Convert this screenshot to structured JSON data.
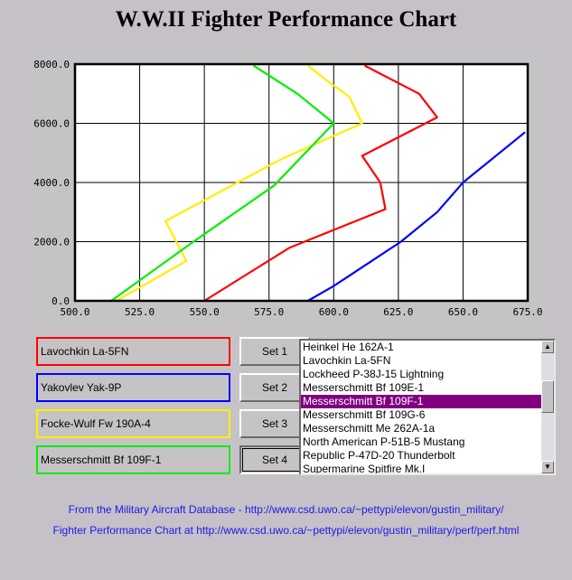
{
  "title": "W.W.II Fighter Performance Chart",
  "colors": {
    "set1": "#ff0000",
    "set2": "#0000ff",
    "set3": "#ffee00",
    "set4": "#00ee00",
    "selection": "#800080",
    "footer_link": "#1a1ae6"
  },
  "sets": [
    {
      "aircraft": "Lavochkin La-5FN",
      "button_label": "Set 1"
    },
    {
      "aircraft": "Yakovlev Yak-9P",
      "button_label": "Set 2"
    },
    {
      "aircraft": "Focke-Wulf Fw 190A-4",
      "button_label": "Set 3"
    },
    {
      "aircraft": "Messerschmitt Bf 109F-1",
      "button_label": "Set 4"
    }
  ],
  "aircraft_list": {
    "items": [
      "Heinkel He 162A-1",
      "Lavochkin La-5FN",
      "Lockheed P-38J-15 Lightning",
      "Messerschmitt Bf 109E-1",
      "Messerschmitt Bf 109F-1",
      "Messerschmitt Bf 109G-6",
      "Messerschmitt Me 262A-1a",
      "North American P-51B-5 Mustang",
      "Republic P-47D-20 Thunderbolt",
      "Supermarine Spitfire Mk.I"
    ],
    "selected": "Messerschmitt Bf 109F-1",
    "scroll_up_icon": "arrow-up-icon",
    "scroll_down_icon": "arrow-down-icon"
  },
  "footer": {
    "line1": "From the Military Aircraft Database - http://www.csd.uwo.ca/~pettypi/elevon/gustin_military/",
    "line2": "Fighter Performance Chart at http://www.csd.uwo.ca/~pettypi/elevon/gustin_military/perf/perf.html"
  },
  "chart_data": {
    "type": "line",
    "grid": true,
    "xlim": [
      500,
      675
    ],
    "ylim": [
      0,
      8000
    ],
    "x_ticks": [
      "500.0",
      "525.0",
      "550.0",
      "575.0",
      "600.0",
      "625.0",
      "650.0",
      "675.0"
    ],
    "y_ticks": [
      "0.0",
      "2000.0",
      "4000.0",
      "6000.0",
      "8000.0"
    ],
    "series": [
      {
        "set": 1,
        "color": "#ff0000",
        "points": [
          [
            550,
            0
          ],
          [
            583,
            1800
          ],
          [
            620,
            3100
          ],
          [
            618,
            4000
          ],
          [
            611,
            4900
          ],
          [
            640,
            6200
          ],
          [
            633,
            7000
          ],
          [
            612,
            7950
          ]
        ]
      },
      {
        "set": 2,
        "color": "#0000ff",
        "points": [
          [
            590,
            0
          ],
          [
            600,
            500
          ],
          [
            626,
            2000
          ],
          [
            640,
            3000
          ],
          [
            650,
            4000
          ],
          [
            674,
            5700
          ]
        ]
      },
      {
        "set": 3,
        "color": "#ffee00",
        "points": [
          [
            516,
            0
          ],
          [
            543,
            1350
          ],
          [
            535,
            2700
          ],
          [
            580,
            4800
          ],
          [
            611,
            6000
          ],
          [
            606,
            6900
          ],
          [
            598,
            7400
          ],
          [
            590,
            7950
          ]
        ]
      },
      {
        "set": 4,
        "color": "#00ee00",
        "points": [
          [
            514,
            0
          ],
          [
            545,
            1950
          ],
          [
            577,
            3900
          ],
          [
            600,
            6000
          ],
          [
            586,
            7000
          ],
          [
            569,
            7950
          ]
        ]
      }
    ]
  }
}
